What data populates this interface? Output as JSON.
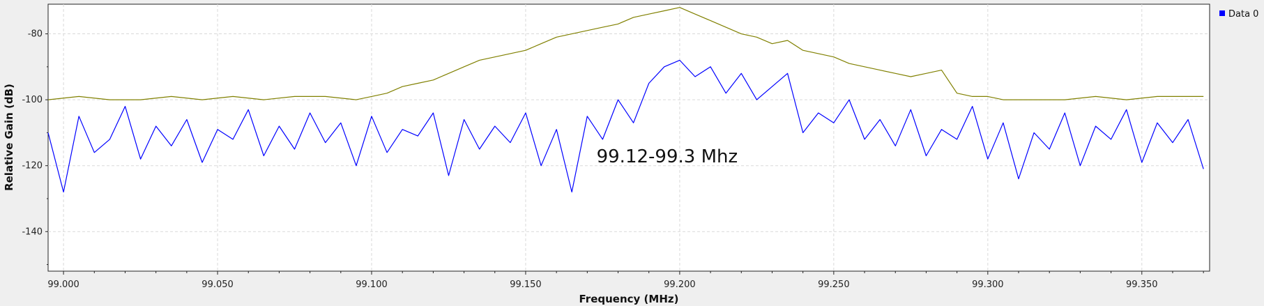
{
  "chart_data": {
    "type": "line",
    "title": "",
    "xlabel": "Frequency (MHz)",
    "ylabel": "Relative Gain (dB)",
    "xlim": [
      98.995,
      99.372
    ],
    "ylim": [
      -152,
      -71
    ],
    "grid": true,
    "legend_position": "top-right",
    "x_ticks": [
      {
        "value": 99.0,
        "label": "99.000"
      },
      {
        "value": 99.05,
        "label": "99.050"
      },
      {
        "value": 99.1,
        "label": "99.100"
      },
      {
        "value": 99.15,
        "label": "99.150"
      },
      {
        "value": 99.2,
        "label": "99.200"
      },
      {
        "value": 99.25,
        "label": "99.250"
      },
      {
        "value": 99.3,
        "label": "99.300"
      },
      {
        "value": 99.35,
        "label": "99.350"
      }
    ],
    "y_ticks": [
      {
        "value": -80,
        "label": "-80"
      },
      {
        "value": -100,
        "label": "-100"
      },
      {
        "value": -120,
        "label": "-120"
      },
      {
        "value": -140,
        "label": "-140"
      }
    ],
    "annotation": {
      "text": "99.12-99.3 Mhz",
      "x": 99.173,
      "y": -119
    },
    "series": [
      {
        "name": "Data 0",
        "color": "#0000ff",
        "in_legend": true,
        "x": [
          98.995,
          99.0,
          99.005,
          99.01,
          99.015,
          99.02,
          99.025,
          99.03,
          99.035,
          99.04,
          99.045,
          99.05,
          99.055,
          99.06,
          99.065,
          99.07,
          99.075,
          99.08,
          99.085,
          99.09,
          99.095,
          99.1,
          99.105,
          99.11,
          99.115,
          99.12,
          99.125,
          99.13,
          99.135,
          99.14,
          99.145,
          99.15,
          99.155,
          99.16,
          99.165,
          99.17,
          99.175,
          99.18,
          99.185,
          99.19,
          99.195,
          99.2,
          99.205,
          99.21,
          99.215,
          99.22,
          99.225,
          99.23,
          99.235,
          99.24,
          99.245,
          99.25,
          99.255,
          99.26,
          99.265,
          99.27,
          99.275,
          99.28,
          99.285,
          99.29,
          99.295,
          99.3,
          99.305,
          99.31,
          99.315,
          99.32,
          99.325,
          99.33,
          99.335,
          99.34,
          99.345,
          99.35,
          99.355,
          99.36,
          99.365,
          99.37
        ],
        "y": [
          -110,
          -128,
          -105,
          -116,
          -112,
          -102,
          -118,
          -108,
          -114,
          -106,
          -119,
          -109,
          -112,
          -103,
          -117,
          -108,
          -115,
          -104,
          -113,
          -107,
          -120,
          -105,
          -116,
          -109,
          -111,
          -104,
          -123,
          -106,
          -115,
          -108,
          -113,
          -104,
          -120,
          -109,
          -128,
          -105,
          -112,
          -100,
          -107,
          -95,
          -90,
          -88,
          -93,
          -90,
          -98,
          -92,
          -100,
          -96,
          -92,
          -110,
          -104,
          -107,
          -100,
          -112,
          -106,
          -114,
          -103,
          -117,
          -109,
          -112,
          -102,
          -118,
          -107,
          -124,
          -110,
          -115,
          -104,
          -120,
          -108,
          -112,
          -103,
          -119,
          -107,
          -113,
          -106,
          -121
        ]
      },
      {
        "name": "",
        "color": "#808000",
        "in_legend": false,
        "x": [
          98.995,
          99.005,
          99.015,
          99.025,
          99.035,
          99.045,
          99.055,
          99.065,
          99.075,
          99.085,
          99.095,
          99.1,
          99.105,
          99.11,
          99.115,
          99.12,
          99.125,
          99.13,
          99.135,
          99.14,
          99.145,
          99.15,
          99.155,
          99.16,
          99.165,
          99.17,
          99.175,
          99.18,
          99.185,
          99.19,
          99.195,
          99.2,
          99.205,
          99.21,
          99.215,
          99.22,
          99.225,
          99.23,
          99.235,
          99.24,
          99.245,
          99.25,
          99.255,
          99.26,
          99.265,
          99.27,
          99.275,
          99.28,
          99.285,
          99.29,
          99.295,
          99.3,
          99.305,
          99.315,
          99.325,
          99.335,
          99.345,
          99.355,
          99.365,
          99.37
        ],
        "y": [
          -100,
          -99,
          -100,
          -100,
          -99,
          -100,
          -99,
          -100,
          -99,
          -99,
          -100,
          -99,
          -98,
          -96,
          -95,
          -94,
          -92,
          -90,
          -88,
          -87,
          -86,
          -85,
          -83,
          -81,
          -80,
          -79,
          -78,
          -77,
          -75,
          -74,
          -73,
          -72,
          -74,
          -76,
          -78,
          -80,
          -81,
          -83,
          -82,
          -85,
          -86,
          -87,
          -89,
          -90,
          -91,
          -92,
          -93,
          -92,
          -91,
          -98,
          -99,
          -99,
          -100,
          -100,
          -100,
          -99,
          -100,
          -99,
          -99,
          -99
        ]
      }
    ]
  }
}
